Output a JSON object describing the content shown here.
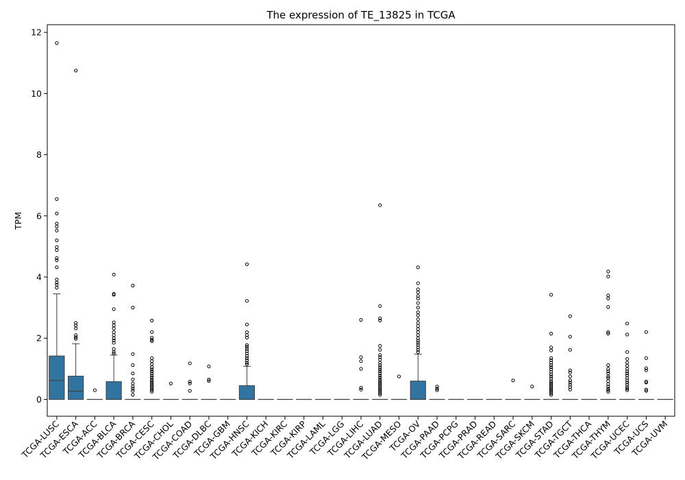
{
  "chart_data": {
    "type": "box",
    "title": "The expression of TE_13825 in TCGA",
    "xlabel": "",
    "ylabel": "TPM",
    "ylim": [
      -0.55,
      12.25
    ],
    "yticks": [
      0,
      2,
      4,
      6,
      8,
      10,
      12
    ],
    "grid": false,
    "box_color": "#3274a1",
    "categories": [
      "TCGA-LUSC",
      "TCGA-ESCA",
      "TCGA-ACC",
      "TCGA-BLCA",
      "TCGA-BRCA",
      "TCGA-CESC",
      "TCGA-CHOL",
      "TCGA-COAD",
      "TCGA-DLBC",
      "TCGA-GBM",
      "TCGA-HNSC",
      "TCGA-KICH",
      "TCGA-KIRC",
      "TCGA-KIRP",
      "TCGA-LAML",
      "TCGA-LGG",
      "TCGA-LIHC",
      "TCGA-LUAD",
      "TCGA-MESO",
      "TCGA-OV",
      "TCGA-PAAD",
      "TCGA-PCPG",
      "TCGA-PRAD",
      "TCGA-READ",
      "TCGA-SARC",
      "TCGA-SKCM",
      "TCGA-STAD",
      "TCGA-TGCT",
      "TCGA-THCA",
      "TCGA-THYM",
      "TCGA-UCEC",
      "TCGA-UCS",
      "TCGA-UVM"
    ],
    "boxes": [
      {
        "q1": 0,
        "median": 0.62,
        "q3": 1.42,
        "whisker_low": 0,
        "whisker_high": 3.45,
        "outliers": [
          11.65,
          6.55,
          6.08,
          5.75,
          5.65,
          5.52,
          5.2,
          4.98,
          4.88,
          4.62,
          4.55,
          4.32,
          3.92,
          3.82,
          3.75,
          3.65
        ]
      },
      {
        "q1": 0,
        "median": 0.27,
        "q3": 0.76,
        "whisker_low": 0,
        "whisker_high": 1.82,
        "outliers": [
          10.75,
          2.5,
          2.42,
          2.32,
          2.1,
          2.03,
          1.98
        ]
      },
      {
        "q1": 0,
        "median": 0,
        "q3": 0,
        "whisker_low": 0,
        "whisker_high": 0,
        "outliers": [
          0.3
        ]
      },
      {
        "q1": 0,
        "median": 0,
        "q3": 0.58,
        "whisker_low": 0,
        "whisker_high": 1.45,
        "outliers": [
          4.08,
          3.45,
          3.42,
          2.95,
          2.52,
          2.42,
          2.32,
          2.2,
          2.1,
          2.0,
          1.93,
          1.85,
          1.65,
          1.55,
          1.5
        ]
      },
      {
        "q1": 0,
        "median": 0,
        "q3": 0,
        "whisker_low": 0,
        "whisker_high": 0,
        "outliers": [
          3.72,
          3.0,
          1.48,
          1.12,
          0.85,
          0.65,
          0.52,
          0.42,
          0.35,
          0.28,
          0.15
        ]
      },
      {
        "q1": 0,
        "median": 0,
        "q3": 0,
        "whisker_low": 0,
        "whisker_high": 0,
        "outliers": [
          2.58,
          2.2,
          2.02,
          1.95,
          1.9,
          1.35,
          1.25,
          1.15,
          1.05,
          0.98,
          0.92,
          0.85,
          0.78,
          0.72,
          0.65,
          0.6,
          0.55,
          0.5,
          0.45,
          0.4,
          0.35,
          0.3,
          0.25
        ]
      },
      {
        "q1": 0,
        "median": 0,
        "q3": 0,
        "whisker_low": 0,
        "whisker_high": 0,
        "outliers": [
          0.52
        ]
      },
      {
        "q1": 0,
        "median": 0,
        "q3": 0,
        "whisker_low": 0,
        "whisker_high": 0,
        "outliers": [
          1.18,
          0.58,
          0.52,
          0.28
        ]
      },
      {
        "q1": 0,
        "median": 0,
        "q3": 0,
        "whisker_low": 0,
        "whisker_high": 0,
        "outliers": [
          1.08,
          0.65,
          0.6
        ]
      },
      {
        "q1": 0,
        "median": 0,
        "q3": 0,
        "whisker_low": 0,
        "whisker_high": 0,
        "outliers": []
      },
      {
        "q1": 0,
        "median": 0,
        "q3": 0.45,
        "whisker_low": 0,
        "whisker_high": 1.08,
        "outliers": [
          4.42,
          3.22,
          2.45,
          2.2,
          2.1,
          2.02,
          1.78,
          1.72,
          1.65,
          1.58,
          1.5,
          1.42,
          1.35,
          1.28,
          1.2,
          1.15
        ]
      },
      {
        "q1": 0,
        "median": 0,
        "q3": 0,
        "whisker_low": 0,
        "whisker_high": 0,
        "outliers": []
      },
      {
        "q1": 0,
        "median": 0,
        "q3": 0,
        "whisker_low": 0,
        "whisker_high": 0,
        "outliers": []
      },
      {
        "q1": 0,
        "median": 0,
        "q3": 0,
        "whisker_low": 0,
        "whisker_high": 0,
        "outliers": []
      },
      {
        "q1": 0,
        "median": 0,
        "q3": 0,
        "whisker_low": 0,
        "whisker_high": 0,
        "outliers": []
      },
      {
        "q1": 0,
        "median": 0,
        "q3": 0,
        "whisker_low": 0,
        "whisker_high": 0,
        "outliers": []
      },
      {
        "q1": 0,
        "median": 0,
        "q3": 0,
        "whisker_low": 0,
        "whisker_high": 0,
        "outliers": [
          2.6,
          1.38,
          1.25,
          1.0,
          0.38,
          0.32
        ]
      },
      {
        "q1": 0,
        "median": 0,
        "q3": 0,
        "whisker_low": 0,
        "whisker_high": 0,
        "outliers": [
          6.35,
          3.05,
          2.65,
          2.58,
          1.75,
          1.62,
          1.45,
          1.38,
          1.3,
          1.2,
          1.12,
          1.05,
          0.98,
          0.92,
          0.85,
          0.78,
          0.72,
          0.65,
          0.6,
          0.55,
          0.5,
          0.45,
          0.4,
          0.35,
          0.3,
          0.25,
          0.2,
          0.15
        ]
      },
      {
        "q1": 0,
        "median": 0,
        "q3": 0,
        "whisker_low": 0,
        "whisker_high": 0,
        "outliers": [
          0.75
        ]
      },
      {
        "q1": 0,
        "median": 0,
        "q3": 0.6,
        "whisker_low": 0,
        "whisker_high": 1.48,
        "outliers": [
          4.32,
          3.8,
          3.6,
          3.5,
          3.38,
          3.3,
          3.15,
          3.0,
          2.85,
          2.75,
          2.62,
          2.5,
          2.4,
          2.3,
          2.2,
          2.1,
          2.0,
          1.92,
          1.85,
          1.78,
          1.7,
          1.62,
          1.55
        ]
      },
      {
        "q1": 0,
        "median": 0,
        "q3": 0,
        "whisker_low": 0,
        "whisker_high": 0,
        "outliers": [
          0.42,
          0.35,
          0.3
        ]
      },
      {
        "q1": 0,
        "median": 0,
        "q3": 0,
        "whisker_low": 0,
        "whisker_high": 0,
        "outliers": []
      },
      {
        "q1": 0,
        "median": 0,
        "q3": 0,
        "whisker_low": 0,
        "whisker_high": 0,
        "outliers": []
      },
      {
        "q1": 0,
        "median": 0,
        "q3": 0,
        "whisker_low": 0,
        "whisker_high": 0,
        "outliers": []
      },
      {
        "q1": 0,
        "median": 0,
        "q3": 0,
        "whisker_low": 0,
        "whisker_high": 0,
        "outliers": [
          0.62
        ]
      },
      {
        "q1": 0,
        "median": 0,
        "q3": 0,
        "whisker_low": 0,
        "whisker_high": 0,
        "outliers": [
          0.42
        ]
      },
      {
        "q1": 0,
        "median": 0,
        "q3": 0,
        "whisker_low": 0,
        "whisker_high": 0,
        "outliers": [
          3.42,
          2.15,
          1.7,
          1.6,
          1.35,
          1.28,
          1.2,
          1.12,
          1.05,
          0.98,
          0.9,
          0.82,
          0.75,
          0.68,
          0.6,
          0.55,
          0.5,
          0.45,
          0.4,
          0.35,
          0.3,
          0.25,
          0.2,
          0.15
        ]
      },
      {
        "q1": 0,
        "median": 0,
        "q3": 0,
        "whisker_low": 0,
        "whisker_high": 0,
        "outliers": [
          2.72,
          2.05,
          1.62,
          0.95,
          0.88,
          0.75,
          0.62,
          0.55,
          0.48,
          0.4,
          0.32
        ]
      },
      {
        "q1": 0,
        "median": 0,
        "q3": 0,
        "whisker_low": 0,
        "whisker_high": 0,
        "outliers": []
      },
      {
        "q1": 0,
        "median": 0,
        "q3": 0,
        "whisker_low": 0,
        "whisker_high": 0,
        "outliers": [
          4.18,
          4.02,
          3.4,
          3.3,
          3.02,
          2.2,
          2.15,
          1.12,
          1.0,
          0.92,
          0.85,
          0.75,
          0.7,
          0.6,
          0.5,
          0.42,
          0.35,
          0.3,
          0.25
        ]
      },
      {
        "q1": 0,
        "median": 0,
        "q3": 0,
        "whisker_low": 0,
        "whisker_high": 0,
        "outliers": [
          2.48,
          2.12,
          1.55,
          1.32,
          1.2,
          1.1,
          1.0,
          0.92,
          0.85,
          0.78,
          0.7,
          0.62,
          0.55,
          0.48,
          0.4,
          0.35,
          0.3
        ]
      },
      {
        "q1": 0,
        "median": 0,
        "q3": 0,
        "whisker_low": 0,
        "whisker_high": 0,
        "outliers": [
          2.2,
          1.35,
          1.02,
          0.95,
          0.58,
          0.55,
          0.32,
          0.28
        ]
      },
      {
        "q1": 0,
        "median": 0,
        "q3": 0,
        "whisker_low": 0,
        "whisker_high": 0,
        "outliers": []
      }
    ]
  }
}
